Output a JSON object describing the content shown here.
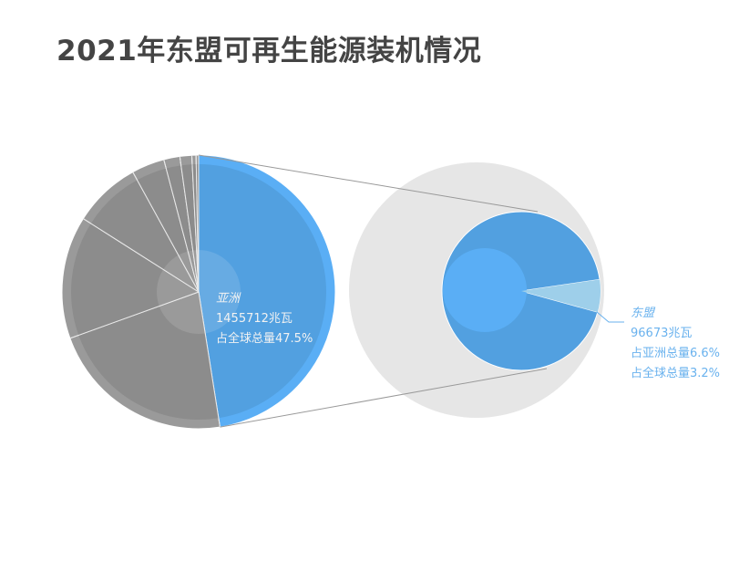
{
  "title": "2021年东盟可再生能源装机情况",
  "chart_data": {
    "type": "pie-of-pie",
    "title": "2021年东盟可再生能源装机情况",
    "main_pie": {
      "unit": "%",
      "slices": [
        {
          "name": "亚洲",
          "value": 47.5,
          "label_lines": [
            "亚洲",
            "1455712兆瓦",
            "占全球总量47.5%"
          ],
          "color": "#52A0E0"
        },
        {
          "value": 22.0,
          "color": "#8C8C8C"
        },
        {
          "value": 14.5,
          "color": "#8C8C8C"
        },
        {
          "value": 8.0,
          "color": "#8C8C8C"
        },
        {
          "value": 3.9,
          "color": "#8C8C8C"
        },
        {
          "value": 1.9,
          "color": "#8C8C8C"
        },
        {
          "value": 1.4,
          "color": "#8C8C8C"
        },
        {
          "value": 0.5,
          "color": "#8C8C8C"
        },
        {
          "value": 0.3,
          "color": "#8C8C8C"
        }
      ]
    },
    "sub_pie": {
      "unit": "%",
      "slices": [
        {
          "value": 93.4,
          "color": "#52A0E0"
        },
        {
          "name": "东盟",
          "value": 6.6,
          "label_lines": [
            "东盟",
            "96673兆瓦",
            "占亚洲总量6.6%",
            "占全球总量3.2%"
          ],
          "color": "#9ECFEA"
        }
      ]
    },
    "colors": {
      "highlight": "#52A0E0",
      "highlight_edge": "#5AAEF5",
      "others": "#8C8C8C",
      "sub_bg": "#E6E6E6",
      "label": "#6AB2EE"
    }
  }
}
